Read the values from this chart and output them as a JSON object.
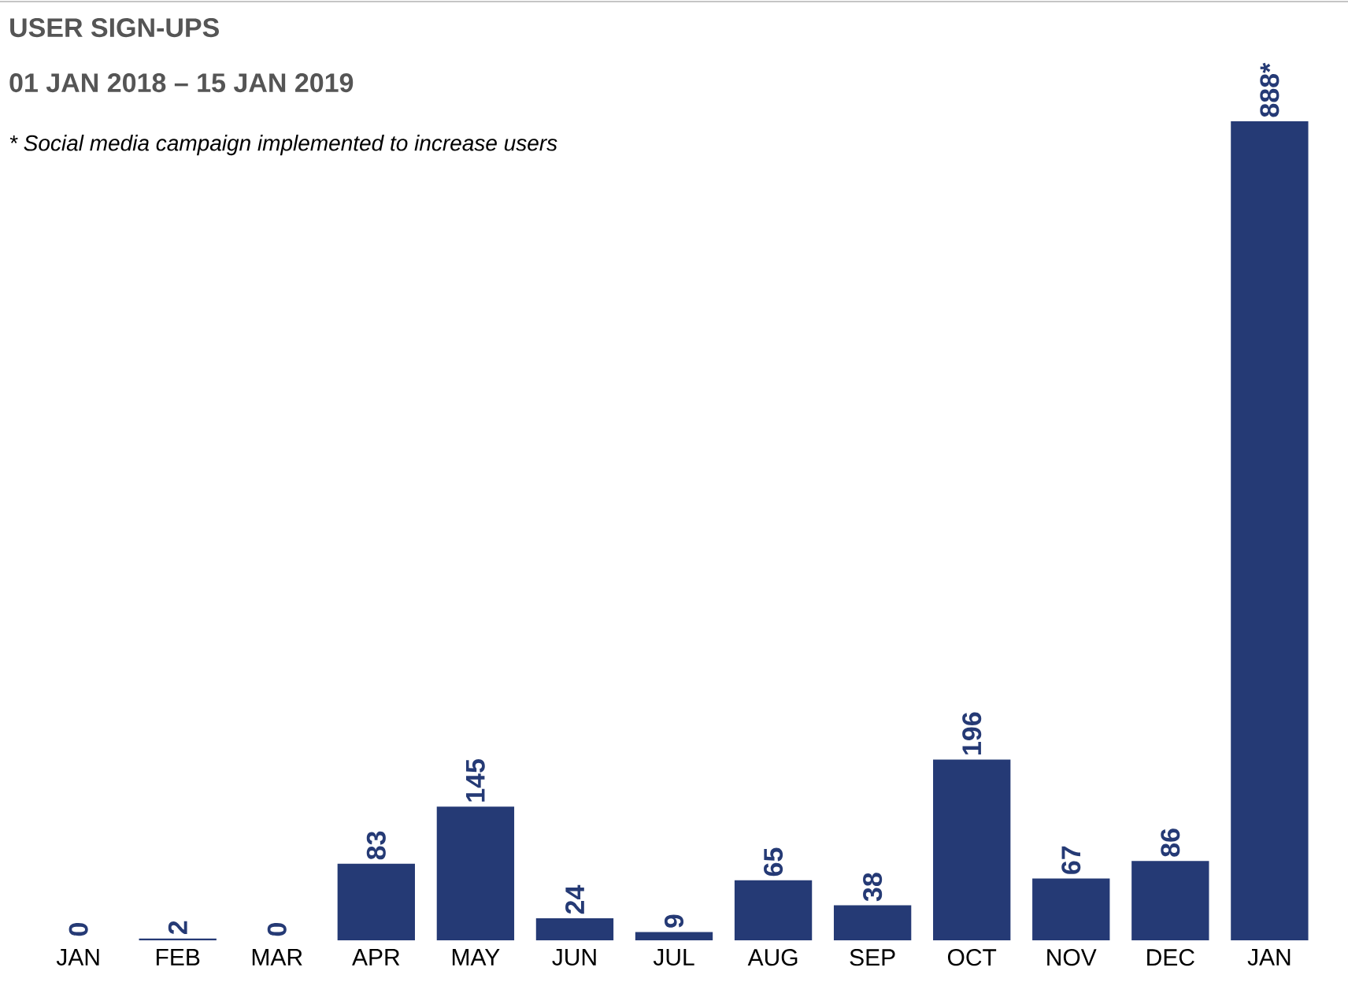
{
  "chart_data": {
    "type": "bar",
    "title": "USER SIGN-UPS",
    "subtitle": "01 JAN 2018 – 15 JAN 2019",
    "annotations": [
      "* Social media campaign implemented to increase users"
    ],
    "categories": [
      "JAN",
      "FEB",
      "MAR",
      "APR",
      "MAY",
      "JUN",
      "JUL",
      "AUG",
      "SEP",
      "OCT",
      "NOV",
      "DEC",
      "JAN"
    ],
    "values": [
      0,
      2,
      0,
      83,
      145,
      24,
      9,
      65,
      38,
      196,
      67,
      86,
      888
    ],
    "value_labels": [
      "0",
      "2",
      "0",
      "83",
      "145",
      "24",
      "9",
      "65",
      "38",
      "196",
      "67",
      "86",
      "888*"
    ],
    "color": "#253a75"
  }
}
